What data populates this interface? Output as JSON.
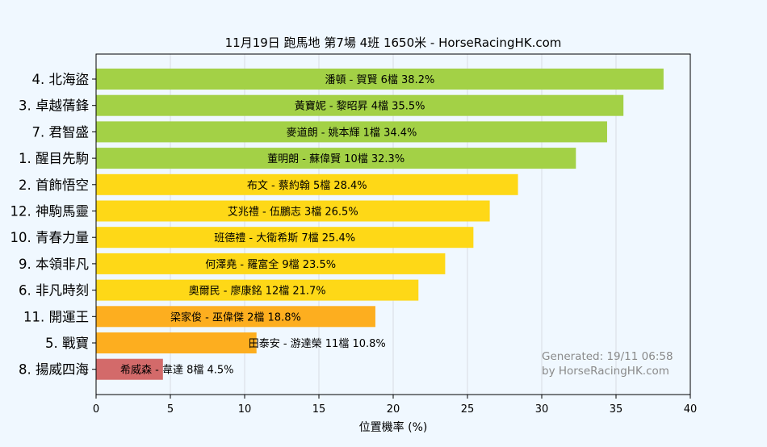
{
  "chart_data": {
    "type": "bar",
    "orientation": "horizontal",
    "title": "11月19日  跑馬地  第7場  4班  1650米 - HorseRacingHK.com",
    "xlabel": "位置機率 (%)",
    "ylabel": "",
    "xlim": [
      0,
      40
    ],
    "xticks": [
      0,
      5,
      10,
      15,
      20,
      25,
      30,
      35,
      40
    ],
    "grid": true,
    "footnote": [
      "Generated: 19/11 06:58",
      "by HorseRacingHK.com"
    ],
    "colors": {
      "green": "#a3d146",
      "yellow": "#fed817",
      "orange": "#fdae1f",
      "red": "#d36a6a"
    },
    "categories": [
      "4. 北海盜",
      "3. 卓越蒨鋒",
      "7. 君智盛",
      "1. 醒目先駒",
      "2. 首飾悟空",
      "12. 神駒馬靈",
      "10. 青春力量",
      "9. 本領非凡",
      "6. 非凡時刻",
      "11. 開運王",
      "5. 戰寶",
      "8. 揚威四海"
    ],
    "values": [
      38.2,
      35.5,
      34.4,
      32.3,
      28.4,
      26.5,
      25.4,
      23.5,
      21.7,
      18.8,
      10.8,
      4.5
    ],
    "bar_labels": [
      "潘頓 - 賀賢 6檔  38.2%",
      "黃寶妮 - 黎昭昇 4檔  35.5%",
      "麥道朗 - 姚本輝 1檔  34.4%",
      "董明朗 - 蘇偉賢 10檔  32.3%",
      "布文 - 蔡約翰 5檔  28.4%",
      "艾兆禮 - 伍鵬志 3檔  26.5%",
      "班德禮 - 大衛希斯 7檔  25.4%",
      "何澤堯 - 羅富全 9檔  23.5%",
      "奧爾民 - 廖康銘 12檔  21.7%",
      "梁家俊 - 巫偉傑 2檔  18.8%",
      "田泰安 - 游達榮 11檔  10.8%",
      "希威森 - 韋達 8檔  4.5%"
    ],
    "bar_colors": [
      "green",
      "green",
      "green",
      "green",
      "yellow",
      "yellow",
      "yellow",
      "yellow",
      "yellow",
      "orange",
      "orange",
      "red"
    ]
  }
}
